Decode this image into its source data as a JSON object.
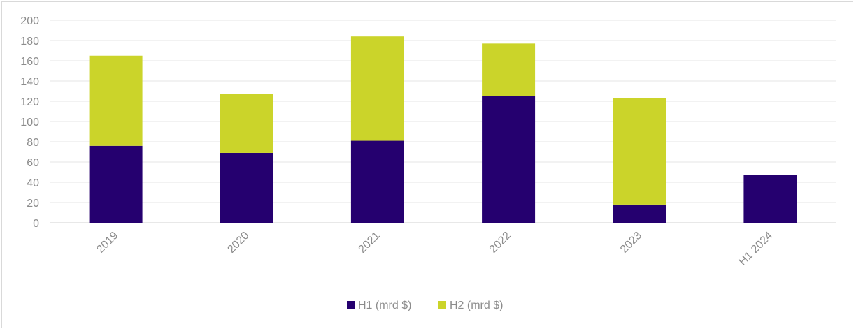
{
  "chart_data": {
    "type": "bar",
    "stacked": true,
    "categories": [
      "2019",
      "2020",
      "2021",
      "2022",
      "2023",
      "H1 2024"
    ],
    "series": [
      {
        "name": "H1 (mrd $)",
        "color": "#25006f",
        "values": [
          76,
          69,
          81,
          125,
          18,
          47
        ]
      },
      {
        "name": "H2 (mrd $)",
        "color": "#cbd42a",
        "values": [
          89,
          58,
          103,
          52,
          105,
          0
        ]
      }
    ],
    "ylim": [
      0,
      200
    ],
    "yticks": [
      0,
      20,
      40,
      60,
      80,
      100,
      120,
      140,
      160,
      180,
      200
    ],
    "grid": true,
    "legend": "bottom-center",
    "title": "",
    "xlabel": "",
    "ylabel": ""
  }
}
